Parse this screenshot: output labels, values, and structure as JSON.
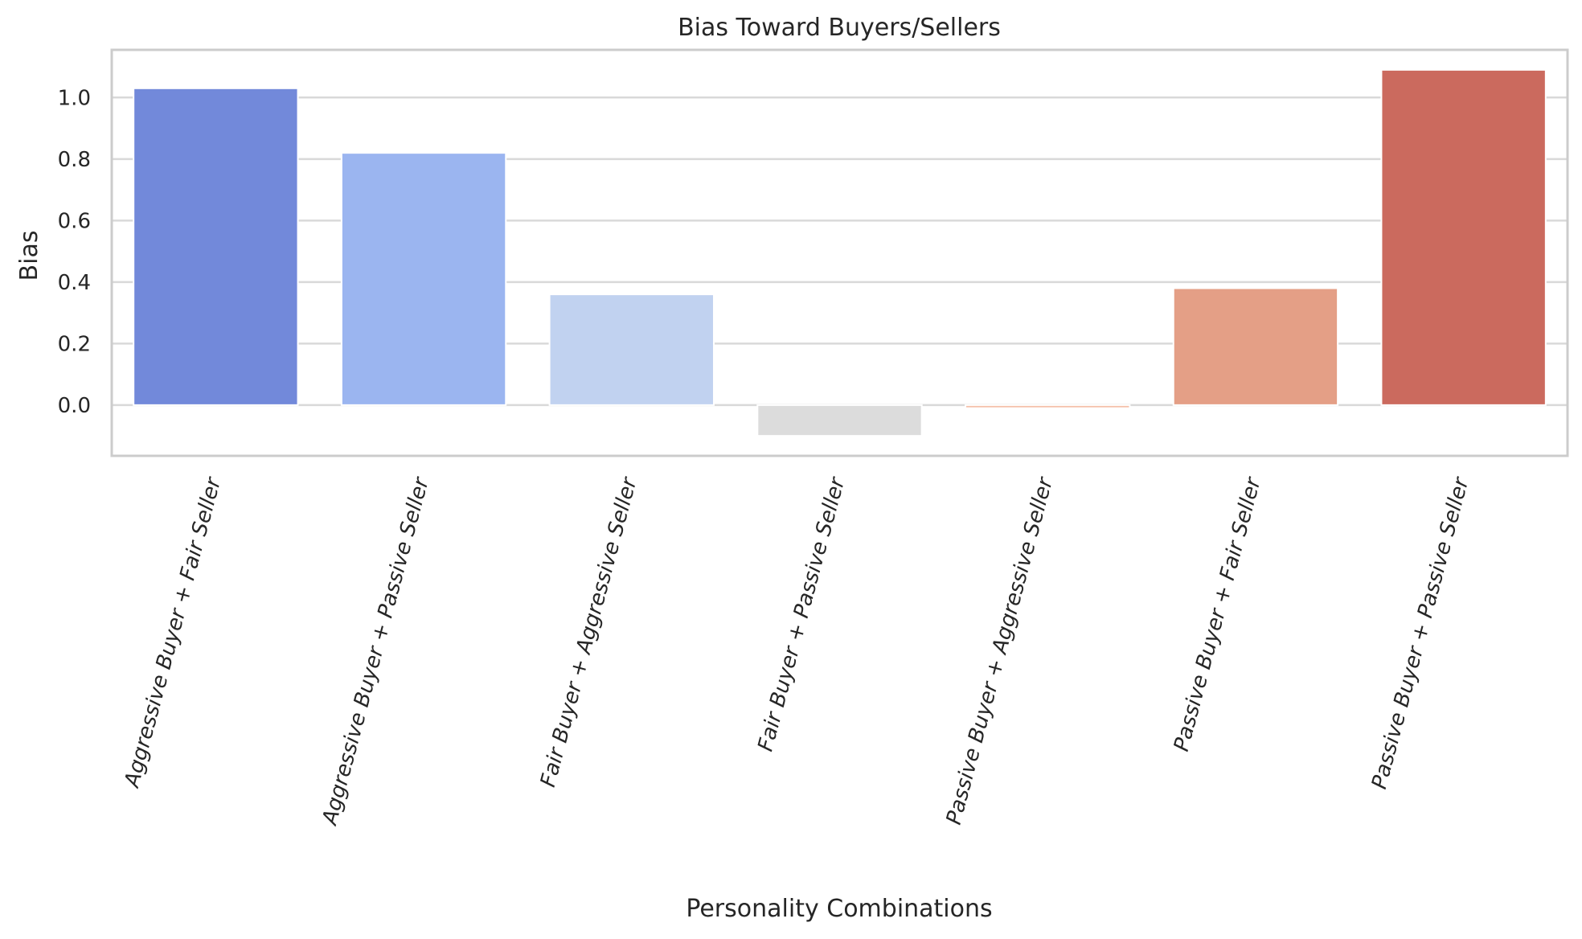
{
  "chart_data": {
    "type": "bar",
    "title": "Bias Toward Buyers/Sellers",
    "xlabel": "Personality Combinations",
    "ylabel": "Bias",
    "categories": [
      "Aggressive Buyer + Fair Seller",
      "Aggressive Buyer + Passive Seller",
      "Fair Buyer + Aggressive Seller",
      "Fair Buyer + Passive Seller",
      "Passive Buyer + Aggressive Seller",
      "Passive Buyer + Fair Seller",
      "Passive Buyer + Passive Seller"
    ],
    "values": [
      1.03,
      0.82,
      0.36,
      -0.1,
      -0.01,
      0.38,
      1.09
    ],
    "colors": [
      "#7289da",
      "#9bb5f0",
      "#c1d2f0",
      "#dcdcdc",
      "#f4c0aa",
      "#e49f86",
      "#cb6a5e"
    ],
    "ylim": [
      -0.165,
      1.155
    ],
    "yticks": [
      0.0,
      0.2,
      0.4,
      0.6,
      0.8,
      1.0
    ],
    "ytick_labels": [
      "0.0",
      "0.2",
      "0.4",
      "0.6",
      "0.8",
      "1.0"
    ],
    "grid": true,
    "legend": "none"
  }
}
